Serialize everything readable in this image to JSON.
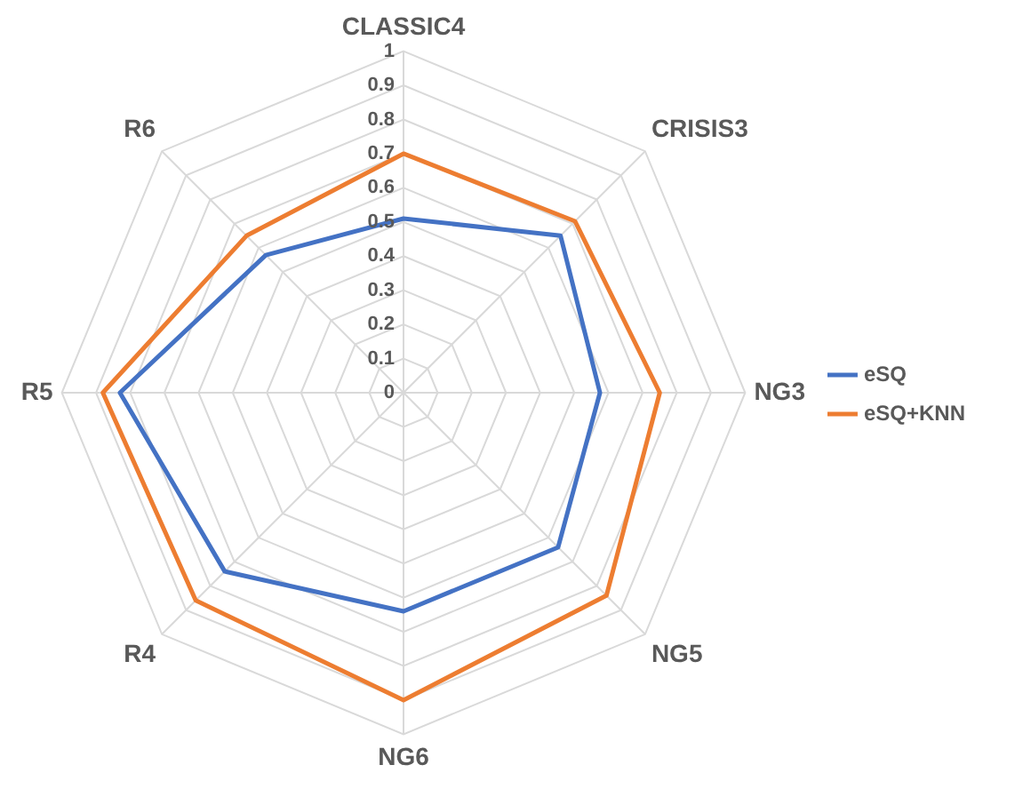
{
  "chart_data": {
    "type": "radar",
    "categories": [
      "CLASSIC4",
      "CRISIS3",
      "NG3",
      "NG5",
      "NG6",
      "R4",
      "R5",
      "R6"
    ],
    "series": [
      {
        "name": "eSQ",
        "color": "#4472c4",
        "values": [
          0.51,
          0.65,
          0.575,
          0.64,
          0.64,
          0.74,
          0.83,
          0.57
        ]
      },
      {
        "name": "eSQ+KNN",
        "color": "#ed7d31",
        "values": [
          0.7,
          0.71,
          0.75,
          0.84,
          0.9,
          0.86,
          0.88,
          0.65
        ]
      }
    ],
    "ylim": [
      0,
      1
    ],
    "yticks": [
      0,
      0.1,
      0.2,
      0.3,
      0.4,
      0.5,
      0.6,
      0.7,
      0.8,
      0.9,
      1
    ],
    "grid": true,
    "legend": "right",
    "marker": "none",
    "line_style": "solid"
  }
}
